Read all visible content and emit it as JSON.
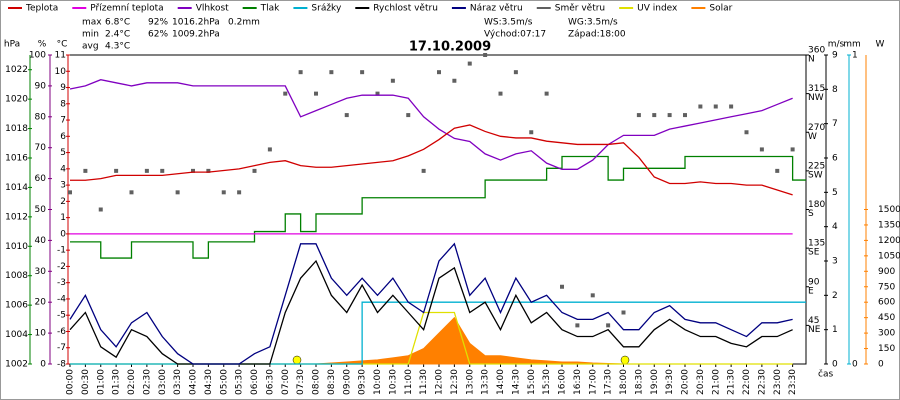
{
  "chart_data": {
    "type": "line",
    "title": "17.10.2009",
    "x_label": "čas",
    "categories": [
      "00:00",
      "00:30",
      "01:00",
      "01:30",
      "02:00",
      "02:30",
      "03:00",
      "03:30",
      "04:00",
      "04:30",
      "05:00",
      "05:30",
      "06:00",
      "06:30",
      "07:00",
      "07:30",
      "08:00",
      "08:30",
      "09:00",
      "09:30",
      "10:00",
      "10:30",
      "11:00",
      "11:30",
      "12:00",
      "12:30",
      "13:00",
      "13:30",
      "14:00",
      "14:30",
      "15:00",
      "15:30",
      "16:00",
      "16:30",
      "17:00",
      "17:30",
      "18:00",
      "18:30",
      "19:00",
      "19:30",
      "20:00",
      "20:30",
      "21:00",
      "21:30",
      "22:00",
      "22:30",
      "23:00",
      "23:30"
    ],
    "stats": [
      [
        "max",
        "6.8°C",
        "92%",
        "1016.2hPa",
        "0.2mm"
      ],
      [
        "min",
        "2.4°C",
        "62%",
        "1009.2hPa"
      ],
      [
        "avg",
        "4.3°C"
      ]
    ],
    "info": [
      [
        "WS:3.5m/s",
        "WG:3.5m/s"
      ],
      [
        "Východ:07:17",
        "Západ:18:00"
      ]
    ],
    "axes": [
      {
        "label": "hPa",
        "color": "#008000",
        "lim": [
          1002,
          1023
        ],
        "ticks": [
          1002,
          1004,
          1006,
          1008,
          1010,
          1012,
          1014,
          1016,
          1018,
          1020,
          1022
        ]
      },
      {
        "label": "%",
        "color": "#800080",
        "lim": [
          0,
          100
        ],
        "ticks": [
          0,
          10,
          20,
          30,
          40,
          50,
          60,
          70,
          80,
          90,
          100
        ]
      },
      {
        "label": "°C",
        "color": "#d00000",
        "lim": [
          -8,
          11
        ],
        "ticks": [
          -8,
          -7,
          -6,
          -5,
          -4,
          -3,
          -2,
          -1,
          0,
          1,
          2,
          3,
          4,
          5,
          6,
          7,
          8,
          9,
          10,
          11
        ]
      },
      {
        "label": "m/s",
        "color": "#000000",
        "lim": [
          0,
          9
        ],
        "ticks": [
          0,
          1,
          2,
          3,
          4,
          5,
          6,
          7,
          8,
          9
        ]
      },
      {
        "color": "#606060",
        "lim": [
          0,
          360
        ],
        "ticks": [
          {
            "value": 45,
            "label": "NE"
          },
          {
            "value": 90,
            "label": "E"
          },
          {
            "value": 135,
            "label": "SE"
          },
          {
            "value": 180,
            "label": "S"
          },
          {
            "value": 225,
            "label": "SW"
          },
          {
            "value": 270,
            "label": "W"
          },
          {
            "value": 315,
            "label": "NW"
          },
          {
            "value": 360,
            "label": "N"
          }
        ]
      },
      {
        "label": "mm",
        "color": "#00b0d0",
        "lim": [
          0,
          1
        ],
        "ticks": [
          0,
          1
        ]
      },
      {
        "label": "W",
        "color": "#ff8000",
        "lim": [
          0,
          3000
        ],
        "ticks": [
          0,
          150,
          300,
          450,
          600,
          750,
          900,
          1050,
          1200,
          1350,
          1500
        ]
      },
      {
        "color": "#e0e000",
        "lim": [
          0,
          6
        ]
      }
    ],
    "series": [
      {
        "name": "Teplota",
        "color": "#d00000",
        "axis": 2,
        "style": "line",
        "values": [
          3.3,
          3.3,
          3.4,
          3.6,
          3.6,
          3.6,
          3.6,
          3.7,
          3.8,
          3.8,
          3.9,
          4.0,
          4.2,
          4.4,
          4.5,
          4.2,
          4.1,
          4.1,
          4.2,
          4.3,
          4.4,
          4.5,
          4.8,
          5.2,
          5.8,
          6.5,
          6.7,
          6.3,
          6.0,
          5.9,
          5.9,
          5.7,
          5.6,
          5.5,
          5.5,
          5.5,
          5.6,
          4.7,
          3.5,
          3.1,
          3.1,
          3.2,
          3.1,
          3.1,
          3.0,
          3.0,
          2.7,
          2.4
        ]
      },
      {
        "name": "Přízemní teplota",
        "color": "#e000e0",
        "axis": 2,
        "style": "line",
        "values": [
          0,
          0,
          0,
          0,
          0,
          0,
          0,
          0,
          0,
          0,
          0,
          0,
          0,
          0,
          0,
          0,
          0,
          0,
          0,
          0,
          0,
          0,
          0,
          0,
          0,
          0,
          0,
          0,
          0,
          0,
          0,
          0,
          0,
          0,
          0,
          0,
          0,
          0,
          0,
          0,
          0,
          0,
          0,
          0,
          0,
          0,
          0,
          0
        ]
      },
      {
        "name": "Vlhkost",
        "color": "#8000c0",
        "axis": 1,
        "style": "line",
        "values": [
          89,
          90,
          92,
          91,
          90,
          91,
          91,
          91,
          90,
          90,
          90,
          90,
          90,
          90,
          90,
          80,
          82,
          84,
          86,
          87,
          87,
          87,
          86,
          80,
          76,
          73,
          72,
          68,
          66,
          68,
          69,
          65,
          63,
          63,
          66,
          71,
          74,
          74,
          74,
          76,
          77,
          78,
          79,
          80,
          81,
          82,
          84,
          86
        ]
      },
      {
        "name": "Tlak",
        "color": "#008000",
        "axis": 0,
        "style": "step",
        "values": [
          1010.3,
          1010.3,
          1009.2,
          1009.2,
          1010.3,
          1010.3,
          1010.3,
          1010.3,
          1009.2,
          1010.3,
          1010.3,
          1010.3,
          1011.0,
          1011.0,
          1012.2,
          1011.0,
          1012.2,
          1012.2,
          1012.2,
          1013.3,
          1013.3,
          1013.3,
          1013.3,
          1013.3,
          1013.3,
          1013.3,
          1013.3,
          1014.5,
          1014.5,
          1014.5,
          1014.5,
          1015.3,
          1016.1,
          1016.1,
          1016.1,
          1014.5,
          1015.3,
          1015.3,
          1015.3,
          1015.3,
          1016.1,
          1016.1,
          1016.1,
          1016.1,
          1016.1,
          1016.1,
          1016.1,
          1014.5
        ]
      },
      {
        "name": "Srážky",
        "color": "#00b0d0",
        "axis": 5,
        "style": "step",
        "values": [
          0,
          0,
          0,
          0,
          0,
          0,
          0,
          0,
          0,
          0,
          0,
          0,
          0,
          0,
          0,
          0,
          0,
          0,
          0,
          0.2,
          0.2,
          0.2,
          0.2,
          0.2,
          0.2,
          0.2,
          0.2,
          0.2,
          0.2,
          0.2,
          0.2,
          0.2,
          0.2,
          0.2,
          0.2,
          0.2,
          0.2,
          0.2,
          0.2,
          0.2,
          0.2,
          0.2,
          0.2,
          0.2,
          0.2,
          0.2,
          0.2,
          0.2
        ]
      },
      {
        "name": "Rychlost větru",
        "color": "#000000",
        "axis": 3,
        "style": "line",
        "values": [
          1.0,
          1.5,
          0.5,
          0.2,
          1.0,
          0.8,
          0.3,
          0,
          0,
          0,
          0,
          0,
          0,
          0,
          1.5,
          2.5,
          3.0,
          2.0,
          1.5,
          2.3,
          1.5,
          2.0,
          1.5,
          1.0,
          2.5,
          2.8,
          1.5,
          1.8,
          1.0,
          2.0,
          1.2,
          1.5,
          1.0,
          0.8,
          0.8,
          1.0,
          0.5,
          0.5,
          1.0,
          1.3,
          1.0,
          0.8,
          0.8,
          0.6,
          0.5,
          0.8,
          0.8,
          1.0
        ]
      },
      {
        "name": "Náraz větru",
        "color": "#000080",
        "axis": 3,
        "style": "line",
        "values": [
          1.3,
          2.0,
          1.0,
          0.5,
          1.2,
          1.5,
          0.8,
          0.3,
          0,
          0,
          0,
          0,
          0.3,
          0.5,
          2.0,
          3.5,
          3.5,
          2.5,
          2.0,
          2.5,
          2.0,
          2.5,
          1.8,
          1.5,
          3.0,
          3.5,
          2.0,
          2.5,
          1.5,
          2.5,
          1.8,
          2.0,
          1.5,
          1.3,
          1.3,
          1.5,
          1.0,
          1.0,
          1.5,
          1.7,
          1.3,
          1.2,
          1.2,
          1.0,
          0.8,
          1.2,
          1.2,
          1.3
        ]
      },
      {
        "name": "Směr větru",
        "color": "#606060",
        "axis": 4,
        "style": "dots",
        "values": [
          200,
          225,
          180,
          225,
          200,
          225,
          225,
          200,
          225,
          225,
          200,
          200,
          225,
          250,
          315,
          340,
          315,
          340,
          290,
          340,
          315,
          330,
          290,
          225,
          340,
          330,
          350,
          360,
          315,
          340,
          270,
          315,
          90,
          45,
          80,
          45,
          60,
          290,
          290,
          290,
          290,
          300,
          300,
          300,
          270,
          250,
          225,
          250
        ]
      },
      {
        "name": "UV index",
        "color": "#e0e000",
        "axis": 7,
        "style": "line",
        "values": [
          0,
          0,
          0,
          0,
          0,
          0,
          0,
          0,
          0,
          0,
          0,
          0,
          0,
          0,
          0,
          0,
          0,
          0,
          0,
          0,
          0,
          0,
          0,
          1,
          1,
          1,
          0,
          0,
          0,
          0,
          0,
          0,
          0,
          0,
          0,
          0,
          0,
          0,
          0,
          0,
          0,
          0,
          0,
          0,
          0,
          0,
          0,
          0
        ]
      },
      {
        "name": "Solar",
        "color": "#ff8000",
        "axis": 6,
        "style": "area",
        "values": [
          0,
          0,
          0,
          0,
          0,
          0,
          0,
          0,
          0,
          0,
          0,
          0,
          0,
          0,
          0,
          0,
          0,
          10,
          20,
          30,
          40,
          60,
          80,
          150,
          300,
          450,
          200,
          80,
          80,
          60,
          40,
          30,
          20,
          20,
          10,
          5,
          0,
          0,
          0,
          0,
          0,
          0,
          0,
          0,
          0,
          0,
          0,
          0
        ]
      }
    ]
  }
}
